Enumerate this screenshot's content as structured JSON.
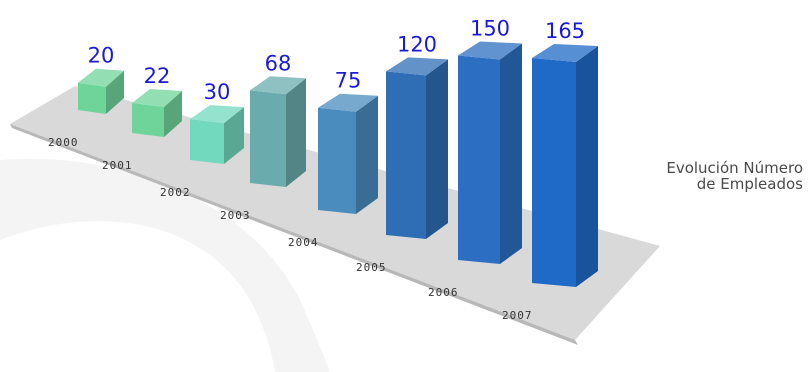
{
  "chart_data": {
    "type": "bar",
    "title": "Evolución Número de Empleados",
    "title_lines": [
      "Evolución Número",
      "de Empleados"
    ],
    "categories": [
      "2000",
      "2001",
      "2002",
      "2003",
      "2004",
      "2005",
      "2006",
      "2007"
    ],
    "values": [
      20,
      22,
      30,
      68,
      75,
      120,
      150,
      165
    ],
    "colors": [
      "#6fd49a",
      "#6fd49a",
      "#72d8be",
      "#6aabad",
      "#4a8cbd",
      "#2f6db5",
      "#2c6fc2",
      "#1f6ac7"
    ],
    "value_label_color": "#1a1adb",
    "platform_color": "#d9d9d9",
    "xlabel": "",
    "ylabel": "",
    "grid": false,
    "legend": "none"
  }
}
